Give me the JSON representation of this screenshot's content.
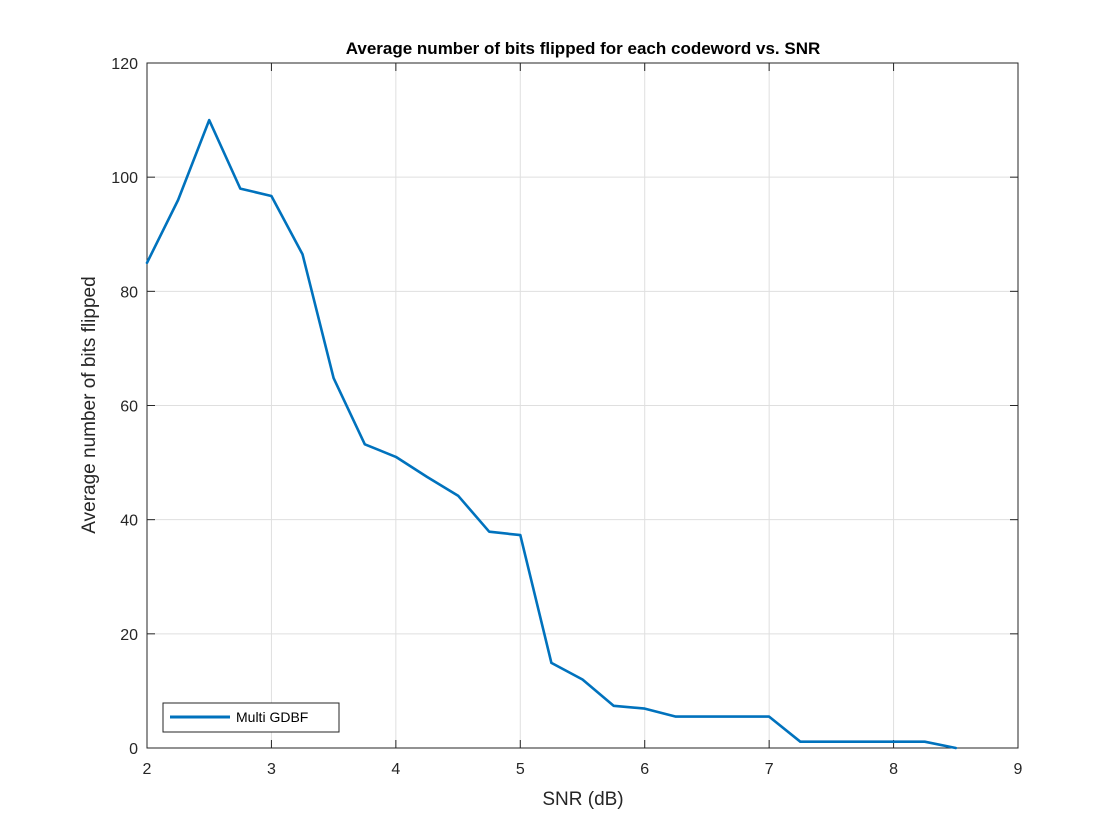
{
  "chart_data": {
    "type": "line",
    "title": "Average number of bits flipped for each codeword vs. SNR",
    "xlabel": "SNR (dB)",
    "ylabel": "Average number of bits flipped",
    "xlim": [
      2,
      9
    ],
    "ylim": [
      0,
      120
    ],
    "xticks": [
      2,
      3,
      4,
      5,
      6,
      7,
      8,
      9
    ],
    "yticks": [
      0,
      20,
      40,
      60,
      80,
      100,
      120
    ],
    "grid": true,
    "legend_position": "bottom-left",
    "series": [
      {
        "name": "Multi GDBF",
        "color": "#0072BD",
        "x": [
          2,
          2.25,
          2.5,
          2.75,
          3,
          3.25,
          3.5,
          3.75,
          4,
          4.25,
          4.5,
          4.75,
          5,
          5.25,
          5.5,
          5.75,
          6,
          6.25,
          6.5,
          6.75,
          7,
          7.25,
          7.5,
          7.75,
          8,
          8.25,
          8.5
        ],
        "y": [
          85,
          96,
          110,
          98,
          96.7,
          86.5,
          64.8,
          53.2,
          51,
          47.5,
          44.2,
          37.9,
          37.3,
          14.9,
          12,
          7.4,
          6.9,
          5.5,
          5.5,
          5.5,
          5.5,
          1.1,
          1.1,
          1.1,
          1.1,
          1.1,
          0
        ]
      }
    ]
  }
}
